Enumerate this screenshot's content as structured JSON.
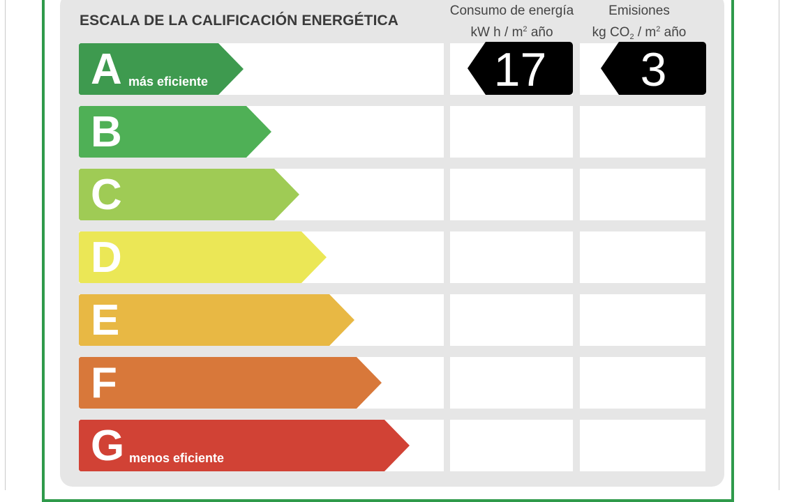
{
  "scale_title": "ESCALA DE LA CALIFICACIÓN ENERGÉTICA",
  "energy_column": {
    "line1": "Consumo de energía",
    "unit_prefix": "kW h  / m",
    "unit_power": "2",
    "unit_suffix": " año"
  },
  "emissions_column": {
    "line1": "Emisiones",
    "unit_prefix": "kg CO",
    "unit_sub": "2",
    "unit_mid": "  / m",
    "unit_power": "2",
    "unit_suffix": " año"
  },
  "ratings": [
    {
      "letter": "A",
      "label": "más eficiente",
      "color": "#3e9a4f"
    },
    {
      "letter": "B",
      "label": "",
      "color": "#4fb056"
    },
    {
      "letter": "C",
      "label": "",
      "color": "#9fcb55"
    },
    {
      "letter": "D",
      "label": "",
      "color": "#ebe756"
    },
    {
      "letter": "E",
      "label": "",
      "color": "#e8b844"
    },
    {
      "letter": "F",
      "label": "",
      "color": "#d8783a"
    },
    {
      "letter": "G",
      "label": "menos eficiente",
      "color": "#d14235"
    }
  ],
  "current_rating": "A",
  "energy_value": "17",
  "emissions_value": "3",
  "colors": {
    "frame": "#2f9a4b",
    "panel": "#e6e6e6",
    "value_tag": "#000000"
  }
}
